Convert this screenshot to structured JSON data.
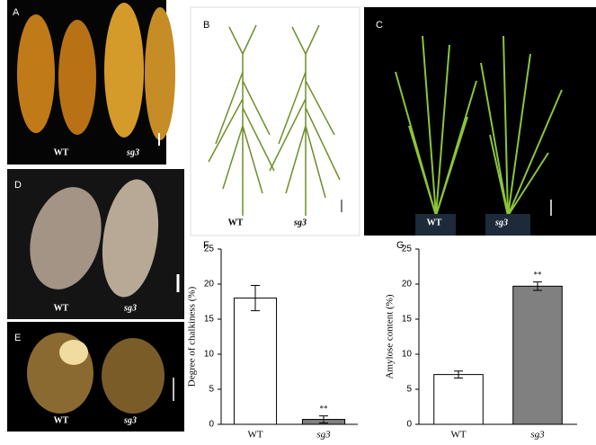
{
  "panels": [
    {
      "label": "A",
      "captions": [
        "WT",
        "sg3"
      ]
    },
    {
      "label": "B",
      "captions": [
        "WT",
        "sg3"
      ]
    },
    {
      "label": "C",
      "captions": [
        "WT",
        "sg3"
      ]
    },
    {
      "label": "D",
      "captions": [
        "WT",
        "sg3"
      ]
    },
    {
      "label": "E",
      "captions": [
        "WT",
        "sg3"
      ]
    }
  ],
  "chart_data": [
    {
      "type": "bar",
      "panel": "F",
      "ylabel": "Degree of chalkiness (%)",
      "categories": [
        "WT",
        "sg3"
      ],
      "values": [
        18,
        0.7
      ],
      "errors": [
        1.8,
        0.5
      ],
      "colors": [
        "#ffffff",
        "#808080"
      ],
      "annotations": [
        null,
        "**"
      ],
      "ylim": [
        0,
        25
      ],
      "yticks": [
        0,
        5,
        10,
        15,
        20,
        25
      ]
    },
    {
      "type": "bar",
      "panel": "G",
      "ylabel": "Amylose content (%)",
      "categories": [
        "WT",
        "sg3"
      ],
      "values": [
        7.1,
        19.7
      ],
      "errors": [
        0.5,
        0.6
      ],
      "colors": [
        "#ffffff",
        "#808080"
      ],
      "annotations": [
        null,
        "**"
      ],
      "ylim": [
        0,
        25
      ],
      "yticks": [
        0,
        5,
        10,
        15,
        20,
        25
      ]
    }
  ]
}
